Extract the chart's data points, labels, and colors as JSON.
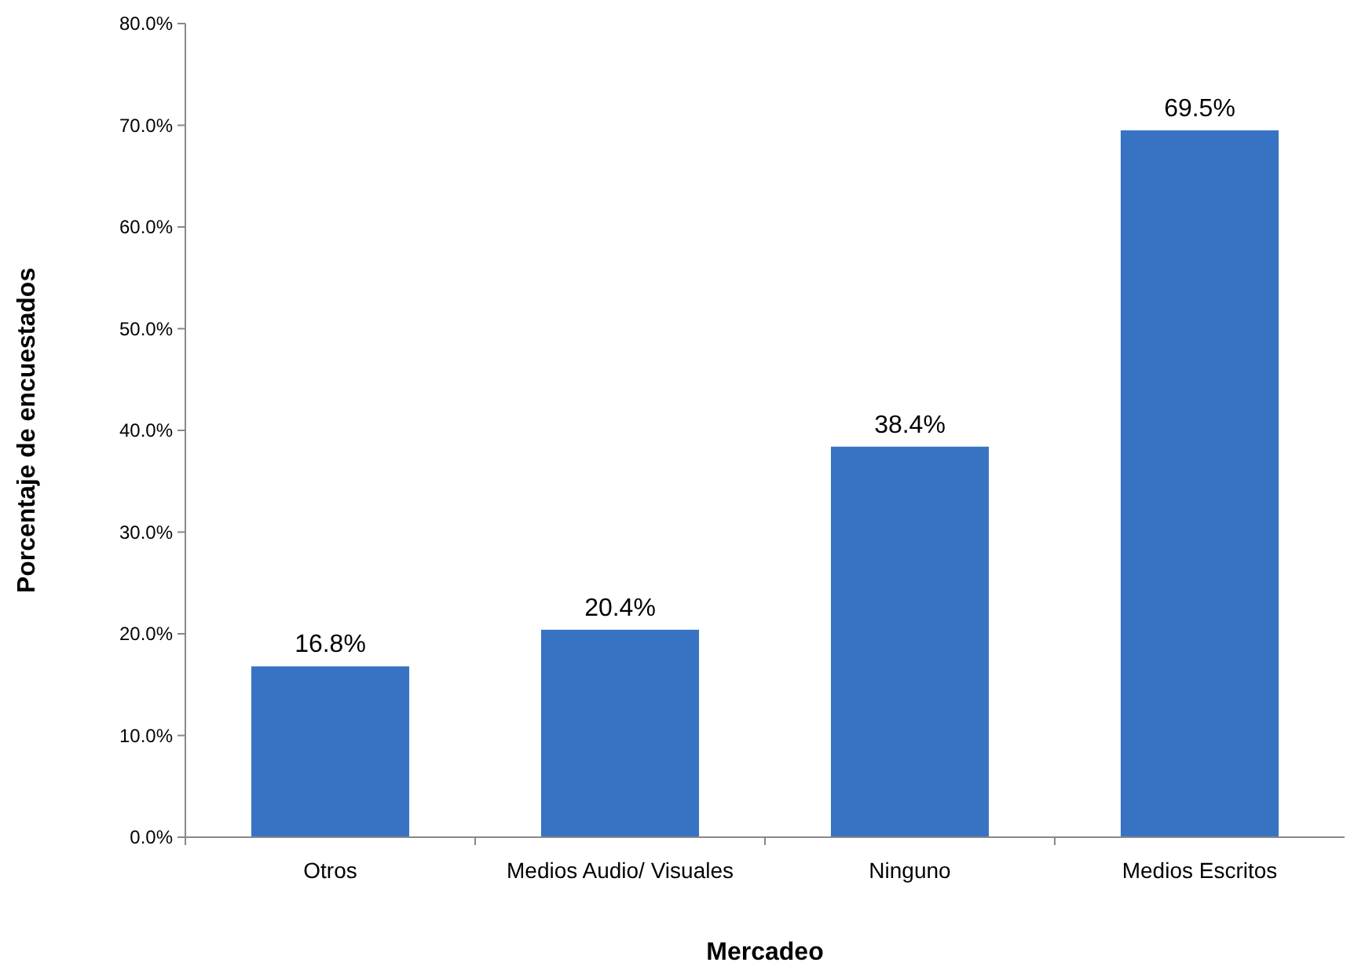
{
  "chart_data": {
    "type": "bar",
    "xlabel": "Mercadeo",
    "ylabel": "Porcentaje de encuestados",
    "categories": [
      "Otros",
      "Medios Audio/ Visuales",
      "Ninguno",
      "Medios Escritos"
    ],
    "values": [
      16.8,
      20.4,
      38.4,
      69.5
    ],
    "color": "#3873c3",
    "value_labels": [
      "16.8%",
      "20.4%",
      "38.4%",
      "69.5%"
    ],
    "ylim": [
      0,
      80
    ],
    "yticks": [
      {
        "value": 0,
        "label": "0.0%"
      },
      {
        "value": 10,
        "label": "10.0%"
      },
      {
        "value": 20,
        "label": "20.0%"
      },
      {
        "value": 30,
        "label": "30.0%"
      },
      {
        "value": 40,
        "label": "40.0%"
      },
      {
        "value": 50,
        "label": "50.0%"
      },
      {
        "value": 60,
        "label": "60.0%"
      },
      {
        "value": 70,
        "label": "70.0%"
      },
      {
        "value": 80,
        "label": "80.0%"
      }
    ],
    "grid": false
  }
}
